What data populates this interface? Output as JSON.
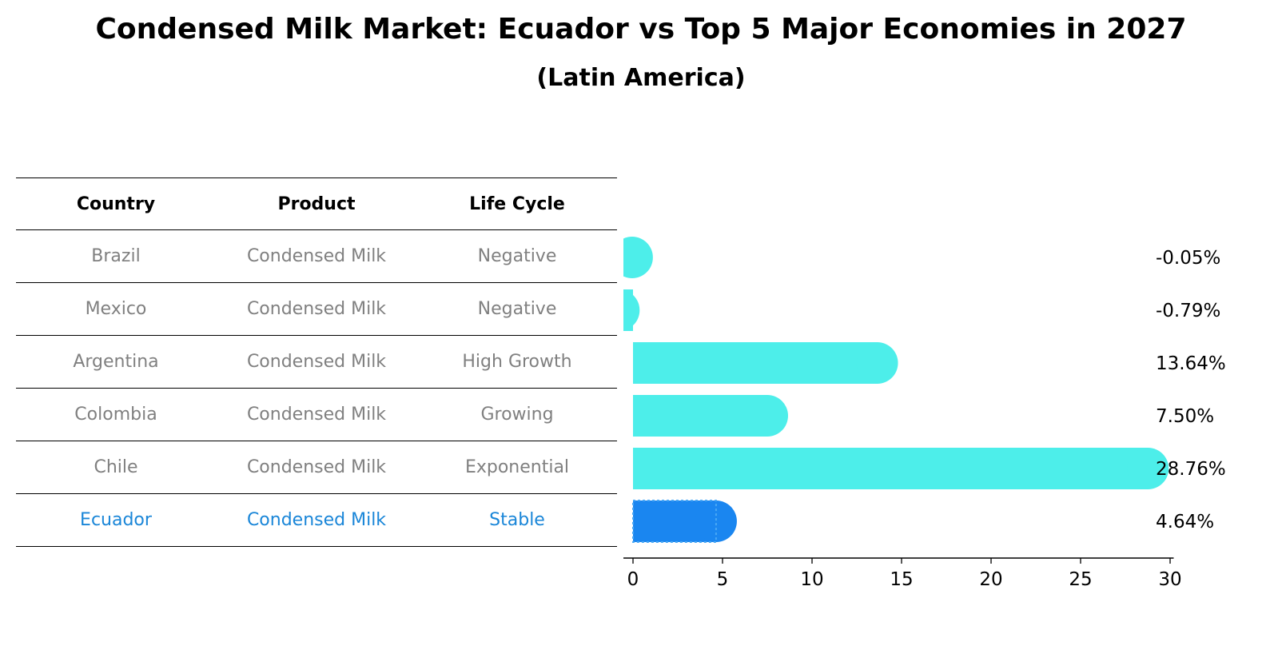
{
  "title": "Condensed Milk Market: Ecuador vs Top 5 Major Economies in 2027",
  "subtitle": "(Latin America)",
  "table": {
    "headers": [
      "Country",
      "Product",
      "Life Cycle"
    ],
    "rows": [
      {
        "country": "Brazil",
        "product": "Condensed Milk",
        "life_cycle": "Negative"
      },
      {
        "country": "Mexico",
        "product": "Condensed Milk",
        "life_cycle": "Negative"
      },
      {
        "country": "Argentina",
        "product": "Condensed Milk",
        "life_cycle": "High Growth"
      },
      {
        "country": "Colombia",
        "product": "Condensed Milk",
        "life_cycle": "Growing"
      },
      {
        "country": "Chile",
        "product": "Condensed Milk",
        "life_cycle": "Exponential"
      },
      {
        "country": "Ecuador",
        "product": "Condensed Milk",
        "life_cycle": "Stable"
      }
    ]
  },
  "colors": {
    "bar": "#4deeea",
    "highlight": "#1a86f0",
    "highlight_text": "#1a86d8",
    "muted_text": "#808080"
  },
  "chart_data": {
    "type": "bar",
    "orientation": "horizontal",
    "categories": [
      "Brazil",
      "Mexico",
      "Argentina",
      "Colombia",
      "Chile",
      "Ecuador"
    ],
    "values": [
      -0.05,
      -0.79,
      13.64,
      7.5,
      28.76,
      4.64
    ],
    "value_labels": [
      "-0.05%",
      "-0.79%",
      "13.64%",
      "7.50%",
      "28.76%",
      "4.64%"
    ],
    "highlight": "Ecuador",
    "xlim": [
      -2.3,
      30.2
    ],
    "xticks": [
      0,
      5,
      10,
      15,
      20,
      25,
      30
    ],
    "xlabel": "",
    "ylabel": "",
    "grid": false
  }
}
